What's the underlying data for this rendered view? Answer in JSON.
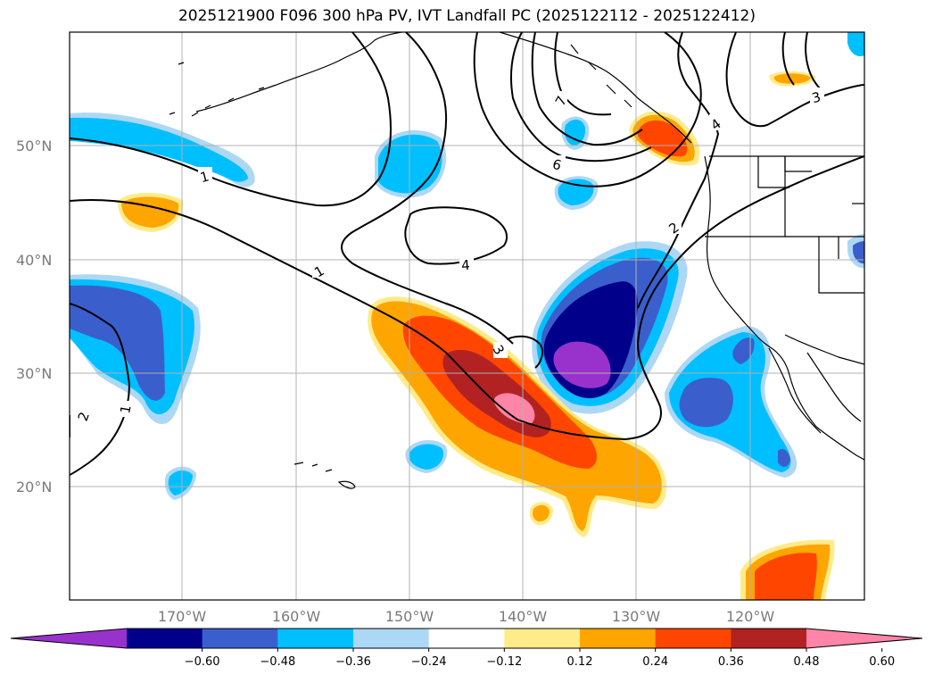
{
  "title": "2025121900 F096 300 hPa PV, IVT Landfall PC (2025122112 - 2025122412)",
  "lat_labels": [
    "50°N",
    "40°N",
    "30°N",
    "20°N"
  ],
  "lon_labels": [
    "170°W",
    "160°W",
    "150°W",
    "140°W",
    "130°W",
    "120°W"
  ],
  "contour_labels": [
    "1",
    "1",
    "1",
    "2",
    "2",
    "3",
    "3",
    "4",
    "4",
    "6",
    "7"
  ],
  "colorbar": {
    "ticks": [
      "−0.60",
      "−0.48",
      "−0.36",
      "−0.24",
      "−0.12",
      "0.12",
      "0.24",
      "0.36",
      "0.48",
      "0.60"
    ],
    "colors": [
      "#9932cc",
      "#00008b",
      "#3a5fcd",
      "#00bfff",
      "#add8f5",
      "#ffffff",
      "#ffeb8a",
      "#ffa500",
      "#ff4500",
      "#b22222",
      "#ff85a8"
    ]
  }
}
